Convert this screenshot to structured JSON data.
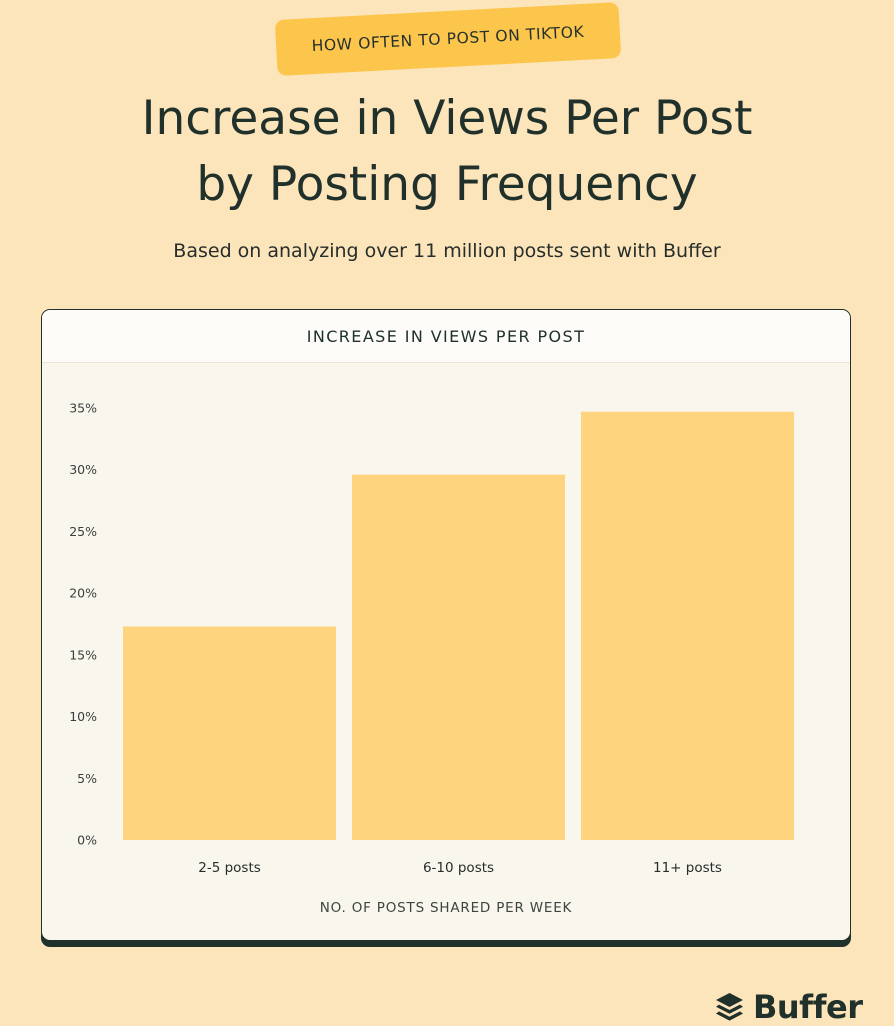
{
  "header": {
    "tag": "HOW OFTEN TO POST ON TIKTOK",
    "title_line1": "Increase in Views Per Post",
    "title_line2": "by Posting Frequency",
    "subtitle": "Based on analyzing over 11 million posts sent with Buffer"
  },
  "brand": {
    "name": "Buffer",
    "icon": "buffer-layers-icon"
  },
  "colors": {
    "background": "#fde5bb",
    "bar": "#fed47f",
    "tag": "#fcc64d",
    "ink": "#20302b"
  },
  "chart_data": {
    "type": "bar",
    "title": "INCREASE IN VIEWS PER POST",
    "xlabel": "NO. OF POSTS SHARED PER WEEK",
    "ylabel": "",
    "categories": [
      "2-5 posts",
      "6-10 posts",
      "11+ posts"
    ],
    "values": [
      17.3,
      29.6,
      34.7
    ],
    "ylim": [
      0,
      35
    ],
    "yticks": [
      0,
      5,
      10,
      15,
      20,
      25,
      30,
      35
    ],
    "ytick_labels": [
      "0%",
      "5%",
      "10%",
      "15%",
      "20%",
      "25%",
      "30%",
      "35%"
    ],
    "grid": false,
    "legend": "none"
  }
}
